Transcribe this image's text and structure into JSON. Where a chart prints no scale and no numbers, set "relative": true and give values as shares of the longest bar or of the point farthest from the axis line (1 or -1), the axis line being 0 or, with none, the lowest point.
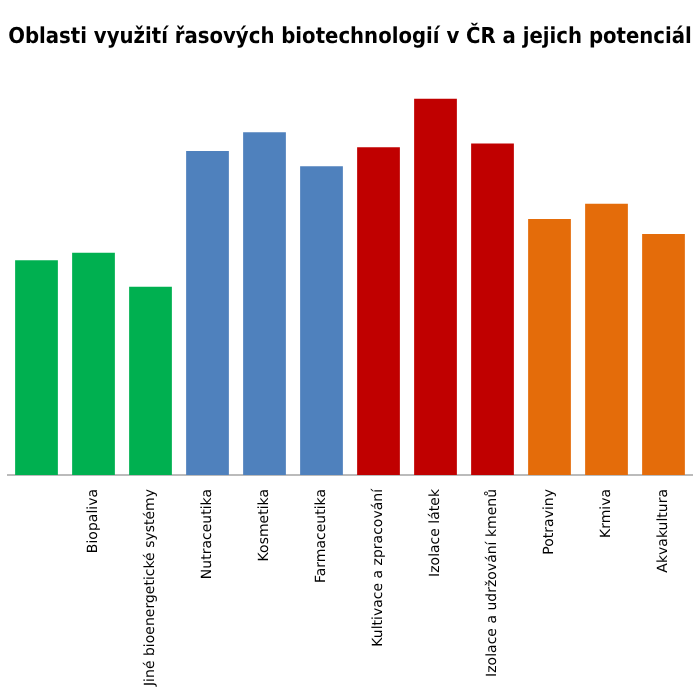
{
  "chart_data": {
    "type": "bar",
    "title": "Oblasti využití řasových biotechnologií v ČR a jejich potenciál",
    "relative": true,
    "categories": [
      null,
      "Biopaliva",
      "Jiné bioenergetické systémy",
      "Nutraceutika",
      "Kosmetika",
      "Farmaceutika",
      "Kultivace a zpracování",
      "Izolace látek",
      "Izolace a udržování kmenů",
      "Potraviny",
      "Krmiva",
      "Akvakultura"
    ],
    "values": [
      0.57,
      0.59,
      0.5,
      0.86,
      0.91,
      0.82,
      0.87,
      1,
      0.88,
      0.68,
      0.72,
      0.64
    ],
    "colors": [
      "#00b050",
      "#00b050",
      "#00b050",
      "#4f81bd",
      "#4f81bd",
      "#4f81bd",
      "#c00000",
      "#c00000",
      "#c00000",
      "#e46c0a",
      "#e46c0a",
      "#e46c0a"
    ],
    "grid": false,
    "legend": false
  }
}
